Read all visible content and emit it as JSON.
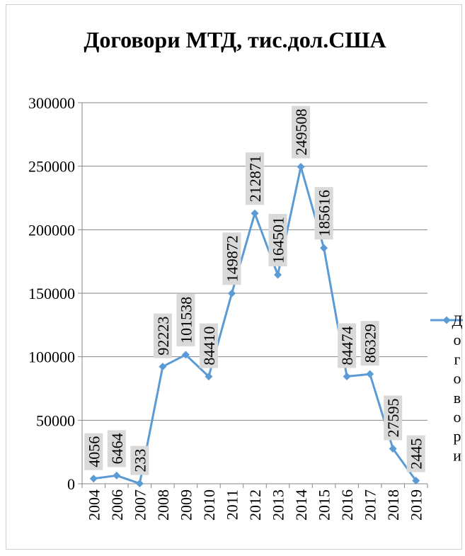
{
  "chart_data": {
    "type": "line",
    "title": "Договори МТД, тис.дол.США",
    "categories": [
      "2004",
      "2006",
      "2007",
      "2008",
      "2009",
      "2010",
      "2011",
      "2012",
      "2013",
      "2014",
      "2015",
      "2016",
      "2017",
      "2018",
      "2019"
    ],
    "series": [
      {
        "name": "Договори",
        "values": [
          4056,
          6464,
          233,
          92223,
          101538,
          84410,
          149872,
          212871,
          164501,
          249508,
          185616,
          84474,
          86329,
          27595,
          2445
        ],
        "labels": [
          "4056",
          "6464",
          "233",
          "92223",
          "101538",
          "84410",
          "149872",
          "212871",
          "164501",
          "249508",
          "185616",
          "84474",
          "86329",
          "27595",
          "2445"
        ],
        "color": "#5b9bd5"
      }
    ],
    "ylim": [
      0,
      300000
    ],
    "yticks": [
      "0",
      "50000",
      "100000",
      "150000",
      "200000",
      "250000",
      "300000"
    ],
    "grid": true,
    "legend_position": "right"
  }
}
